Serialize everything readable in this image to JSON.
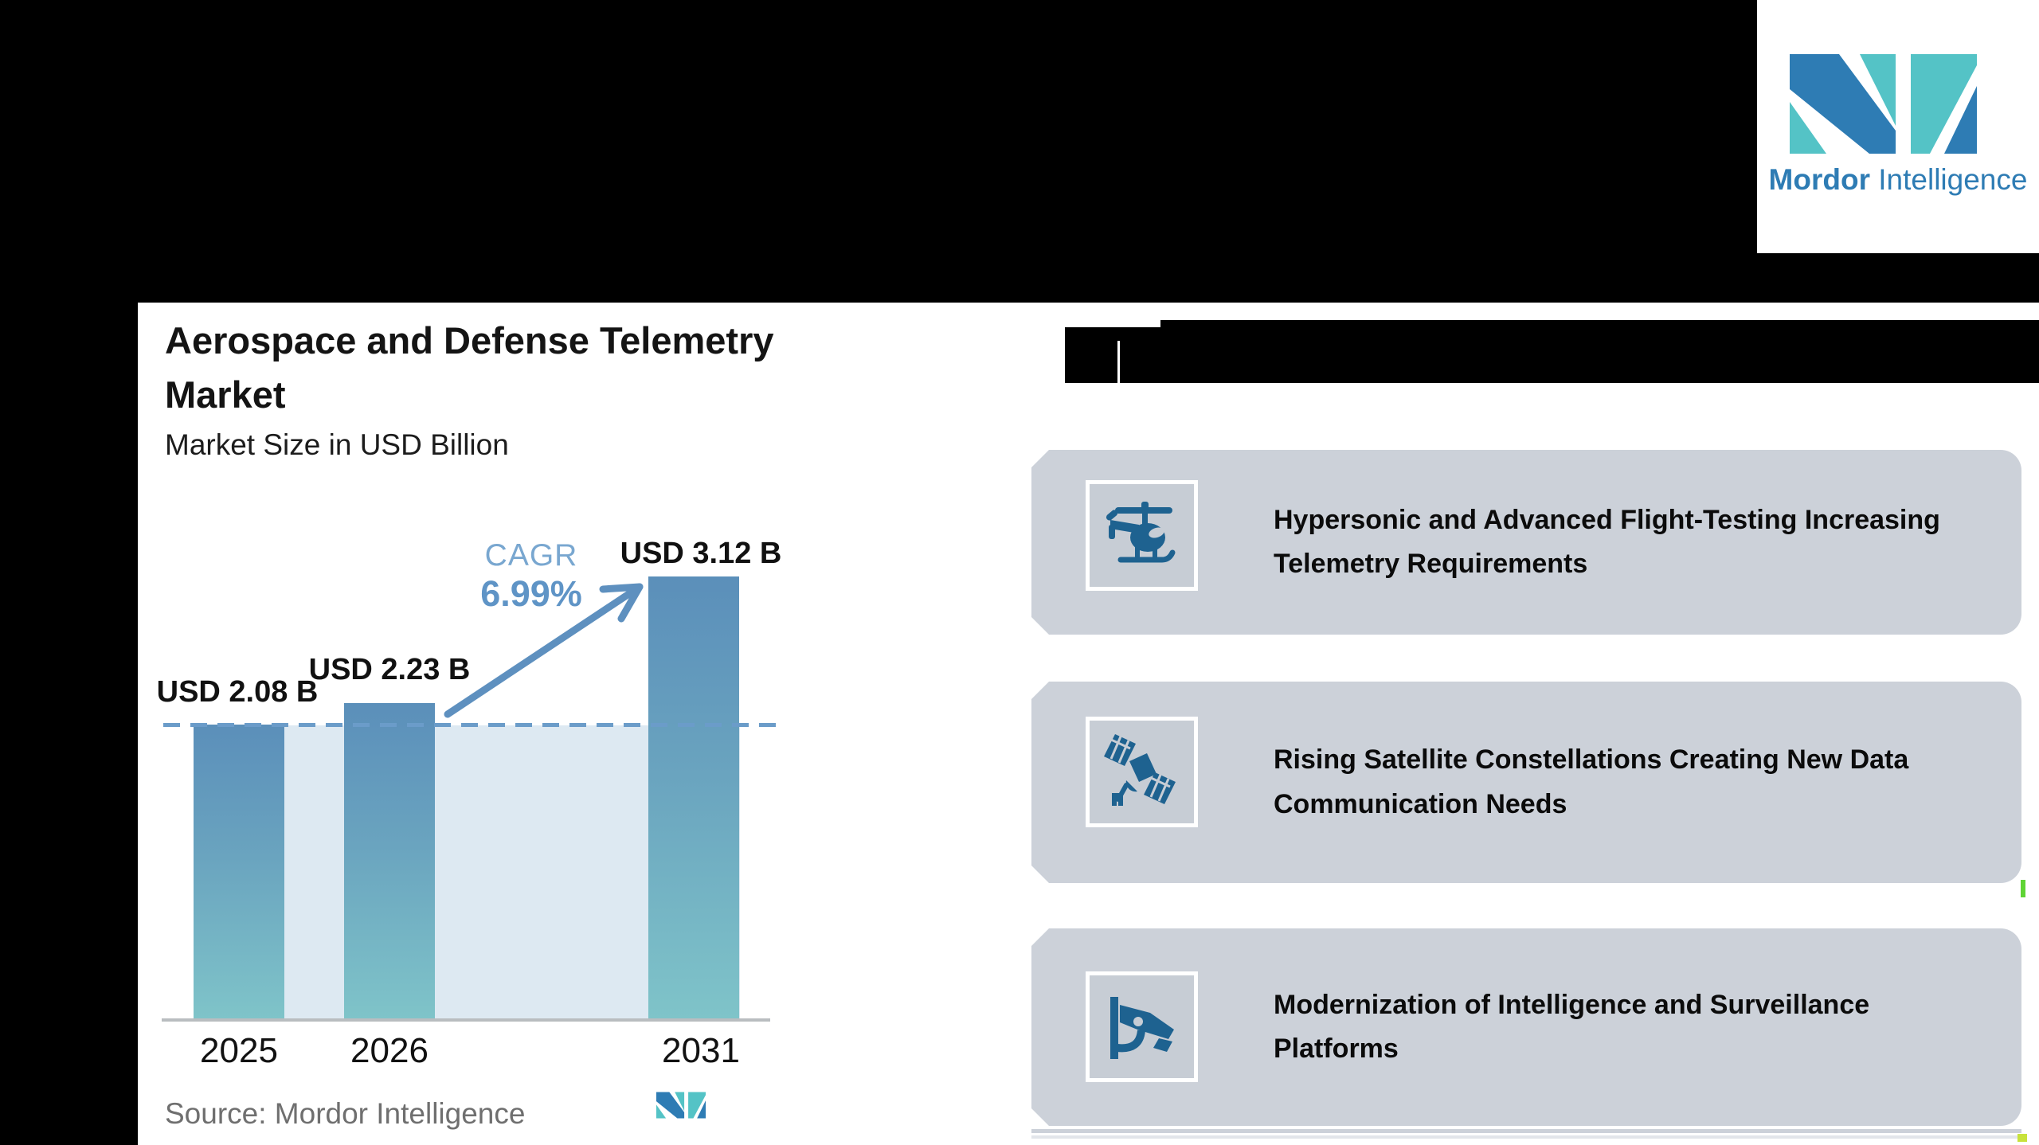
{
  "header": {
    "logo": {
      "brand_bold": "Mordor",
      "brand_light": "Intelligence"
    }
  },
  "chart": {
    "title_line1": "Aerospace and Defense Telemetry",
    "title_line2": "Market",
    "subtitle": "Market Size in USD Billion",
    "cagr_label": "CAGR",
    "cagr_value": "6.99%",
    "source_label": "Source:",
    "source_value": "Mordor Intelligence"
  },
  "chart_data": {
    "type": "bar",
    "title": "Aerospace and Defense Telemetry Market",
    "subtitle": "Market Size in USD Billion",
    "categories": [
      "2025",
      "2026",
      "2031"
    ],
    "values": [
      2.08,
      2.23,
      3.12
    ],
    "data_labels": [
      "USD 2.08 B",
      "USD 2.23 B",
      "USD 3.12 B"
    ],
    "ylabel": "Market Size in USD Billion",
    "xlabel": "",
    "ylim": [
      0,
      3.6
    ],
    "grid": false,
    "legend": false,
    "annotations": [
      {
        "text": "CAGR 6.99%",
        "type": "growth-arrow",
        "from_category": "2026",
        "to_category": "2031"
      },
      {
        "type": "dashed-reference-line",
        "value": 2.08
      }
    ]
  },
  "drivers": {
    "cards": [
      {
        "icon": "helicopter-icon",
        "text": "Hypersonic and Advanced Flight-Testing Increasing Telemetry Requirements"
      },
      {
        "icon": "satellite-icon",
        "text": "Rising Satellite Constellations Creating New Data Communication Needs"
      },
      {
        "icon": "cctv-icon",
        "text": "Modernization of Intelligence and Surveillance Platforms"
      }
    ]
  },
  "colors": {
    "bar_gradient_top": "#5b8fba",
    "bar_gradient_bottom": "#7fc4c9",
    "reference_band": "#dde9f2",
    "dashed_line": "#6b9cc9",
    "growth_arrow": "#5e90bf",
    "cagr_text": "#5f94c6",
    "card_background": "#ccd1d9",
    "icon_blue": "#1e6290",
    "brand_blue": "#2e7cb4",
    "brand_teal": "#54c3c6",
    "source_gray": "#6f6f6f"
  }
}
